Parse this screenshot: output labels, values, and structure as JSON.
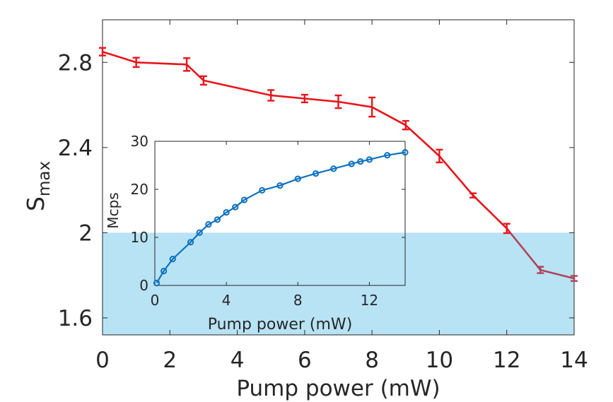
{
  "chart_data": [
    {
      "type": "line",
      "xlabel": "Pump power (mW)",
      "ylabel": "S",
      "ylabel_sub": "max",
      "xlim": [
        0,
        14
      ],
      "ylim": [
        1.52,
        3.0
      ],
      "xticks": [
        0,
        2,
        4,
        6,
        8,
        10,
        12,
        14
      ],
      "yticks": [
        1.6,
        2,
        2.4,
        2.8
      ],
      "ytick_labels": [
        "1.6",
        "2",
        "2.4",
        "2.8"
      ],
      "threshold_band": {
        "ymin": 1.52,
        "ymax": 2.0,
        "color": "#b8e3f5"
      },
      "series": [
        {
          "color": "#e8151b",
          "color_below_threshold": "#b0445a",
          "x": [
            0,
            1,
            2.5,
            3,
            5,
            6,
            7,
            8,
            9,
            10,
            11,
            12,
            13,
            14
          ],
          "y": [
            2.85,
            2.8,
            2.79,
            2.715,
            2.645,
            2.63,
            2.615,
            2.59,
            2.505,
            2.36,
            2.175,
            2.02,
            1.825,
            1.785
          ],
          "err": [
            0.018,
            0.022,
            0.03,
            0.02,
            0.025,
            0.018,
            0.03,
            0.045,
            0.02,
            0.03,
            0.01,
            0.022,
            0.015,
            0.012
          ]
        }
      ]
    },
    {
      "type": "line",
      "xlabel": "Pump power (mW)",
      "ylabel": "Mcps",
      "xlim": [
        0,
        14
      ],
      "ylim": [
        0,
        30
      ],
      "xticks": [
        0,
        4,
        8,
        12
      ],
      "yticks": [
        0,
        10,
        20,
        30
      ],
      "series": [
        {
          "color": "#0f72bd",
          "marker": "circle",
          "x": [
            0.1,
            0.5,
            1,
            2,
            2.5,
            3,
            3.5,
            4,
            4.5,
            5,
            6,
            7,
            8,
            9,
            10,
            11,
            11.5,
            12,
            13,
            14
          ],
          "y": [
            0.5,
            3,
            5.5,
            9,
            11,
            12.7,
            13.7,
            15.2,
            16.3,
            17.8,
            19.8,
            20.8,
            22.2,
            23.3,
            24.3,
            25.3,
            25.8,
            26.2,
            27.1,
            27.7
          ]
        }
      ]
    }
  ]
}
